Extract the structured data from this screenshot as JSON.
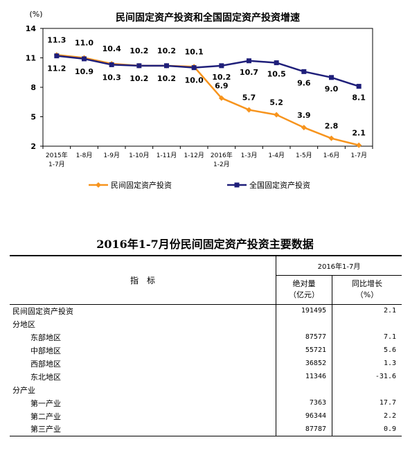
{
  "chart_data": {
    "type": "line",
    "title": "民间固定资产投资和全国固定资产投资增速",
    "ylabel": "(%)",
    "ylim": [
      2,
      14
    ],
    "yticks": [
      2,
      5,
      8,
      11,
      14
    ],
    "categories": [
      "2015年\n1-7月",
      "1-8月",
      "1-9月",
      "1-10月",
      "1-11月",
      "1-12月",
      "2016年\n1-2月",
      "1-3月",
      "1-4月",
      "1-5月",
      "1-6月",
      "1-7月"
    ],
    "series": [
      {
        "name": "民间固定资产投资",
        "color": "#f7941d",
        "marker": "diamond",
        "values": [
          11.3,
          11.0,
          10.4,
          10.2,
          10.2,
          10.1,
          6.9,
          5.7,
          5.2,
          3.9,
          2.8,
          2.1
        ],
        "labels": [
          "11.3",
          "11.0",
          "10.4",
          "10.2",
          "10.2",
          "10.1",
          "6.9",
          "5.7",
          "5.2",
          "3.9",
          "2.8",
          "2.1"
        ]
      },
      {
        "name": "全国固定资产投资",
        "color": "#1f1f7a",
        "marker": "square",
        "values": [
          11.2,
          10.9,
          10.3,
          10.2,
          10.2,
          10.0,
          10.2,
          10.7,
          10.5,
          9.6,
          9.0,
          8.1
        ],
        "labels": [
          "11.2",
          "10.9",
          "10.3",
          "10.2",
          "10.2",
          "10.0",
          "10.2",
          "10.7",
          "10.5",
          "9.6",
          "9.0",
          "8.1"
        ]
      }
    ],
    "legend_position": "bottom"
  },
  "table": {
    "title": "2016年1-7月份民间固定资产投资主要数据",
    "header_indicator": "指　标",
    "header_period": "2016年1-7月",
    "header_abs": "绝对量",
    "header_abs_unit": "（亿元）",
    "header_growth": "同比增长",
    "header_growth_unit": "（%）",
    "rows": [
      {
        "label": "民间固定资产投资",
        "abs": "191495",
        "growth": "2.1",
        "indent": false
      },
      {
        "label": "分地区",
        "abs": "",
        "growth": "",
        "indent": false
      },
      {
        "label": "东部地区",
        "abs": "87577",
        "growth": "7.1",
        "indent": true
      },
      {
        "label": "中部地区",
        "abs": "55721",
        "growth": "5.6",
        "indent": true
      },
      {
        "label": "西部地区",
        "abs": "36852",
        "growth": "1.3",
        "indent": true
      },
      {
        "label": "东北地区",
        "abs": "11346",
        "growth": "-31.6",
        "indent": true
      },
      {
        "label": "分产业",
        "abs": "",
        "growth": "",
        "indent": false
      },
      {
        "label": "第一产业",
        "abs": "7363",
        "growth": "17.7",
        "indent": true
      },
      {
        "label": "第二产业",
        "abs": "96344",
        "growth": "2.2",
        "indent": true
      },
      {
        "label": "第三产业",
        "abs": "87787",
        "growth": "0.9",
        "indent": true
      }
    ]
  }
}
